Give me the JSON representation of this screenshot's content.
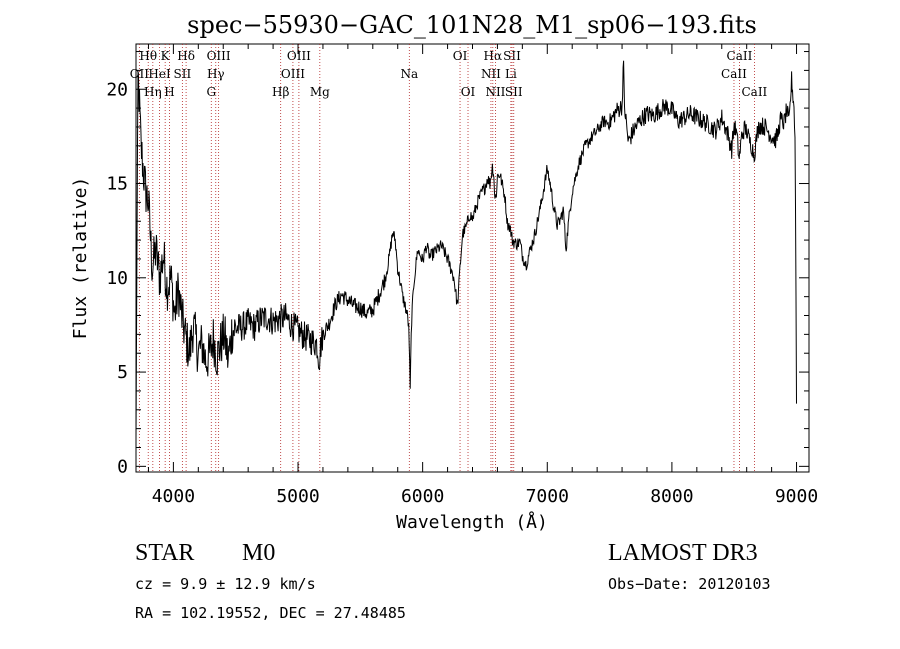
{
  "chart_data": {
    "type": "line",
    "title": "spec−55930−GAC_101N28_M1_sp06−193.fits",
    "xlabel": "Wavelength (Å)",
    "ylabel": "Flux (relative)",
    "xlim": [
      3700,
      9100
    ],
    "ylim": [
      -0.3,
      22.4
    ],
    "xticks": [
      4000,
      5000,
      6000,
      7000,
      8000,
      9000
    ],
    "yticks": [
      0,
      5,
      10,
      15,
      20
    ],
    "grid": false,
    "series": [
      {
        "name": "flux",
        "color": "#000000",
        "x": [
          3700,
          3715,
          3725,
          3740,
          3760,
          3780,
          3800,
          3830,
          3860,
          3890,
          3920,
          3950,
          3980,
          4010,
          4040,
          4070,
          4100,
          4130,
          4160,
          4200,
          4230,
          4260,
          4290,
          4320,
          4350,
          4380,
          4410,
          4440,
          4470,
          4500,
          4550,
          4600,
          4650,
          4700,
          4750,
          4800,
          4850,
          4900,
          4950,
          5000,
          5050,
          5100,
          5150,
          5170,
          5180,
          5200,
          5250,
          5300,
          5350,
          5400,
          5450,
          5500,
          5550,
          5600,
          5650,
          5700,
          5730,
          5760,
          5780,
          5800,
          5820,
          5840,
          5860,
          5880,
          5890,
          5900,
          5910,
          5930,
          5960,
          6000,
          6030,
          6060,
          6100,
          6150,
          6200,
          6250,
          6280,
          6300,
          6320,
          6350,
          6380,
          6400,
          6440,
          6480,
          6500,
          6520,
          6540,
          6560,
          6570,
          6580,
          6590,
          6600,
          6620,
          6640,
          6660,
          6680,
          6700,
          6720,
          6750,
          6780,
          6800,
          6830,
          6860,
          6900,
          6950,
          7000,
          7030,
          7050,
          7080,
          7100,
          7130,
          7150,
          7170,
          7200,
          7250,
          7300,
          7350,
          7400,
          7450,
          7500,
          7550,
          7580,
          7600,
          7610,
          7620,
          7650,
          7700,
          7750,
          7800,
          7850,
          7900,
          7950,
          8000,
          8050,
          8100,
          8150,
          8200,
          8250,
          8300,
          8350,
          8400,
          8450,
          8480,
          8500,
          8520,
          8540,
          8560,
          8580,
          8600,
          8620,
          8640,
          8660,
          8680,
          8700,
          8750,
          8800,
          8830,
          8850,
          8870,
          8900,
          8920,
          8940,
          8960,
          8980,
          8990,
          9000
        ],
        "y": [
          1.5,
          21.0,
          19.5,
          17.0,
          15.6,
          14.5,
          14.0,
          10.5,
          11.5,
          10.0,
          11.2,
          9.5,
          10.0,
          8.0,
          9.4,
          7.8,
          6.8,
          6.0,
          7.5,
          6.0,
          6.5,
          5.6,
          5.9,
          6.8,
          5.8,
          6.5,
          7.0,
          5.6,
          7.2,
          7.3,
          7.4,
          7.6,
          7.4,
          7.8,
          7.9,
          7.7,
          7.8,
          7.9,
          7.5,
          7.2,
          6.9,
          6.7,
          6.5,
          5.6,
          6.3,
          7.0,
          7.6,
          8.6,
          9.1,
          8.8,
          8.5,
          8.4,
          8.1,
          8.3,
          9.1,
          10.0,
          11.0,
          12.4,
          12.0,
          10.5,
          9.8,
          9.0,
          8.5,
          7.9,
          7.2,
          4.0,
          7.6,
          9.8,
          11.5,
          10.9,
          11.7,
          11.1,
          11.4,
          11.7,
          11.0,
          10.0,
          8.5,
          10.5,
          12.3,
          12.7,
          13.4,
          13.1,
          14.0,
          14.6,
          14.8,
          15.3,
          15.0,
          15.9,
          15.6,
          14.2,
          14.3,
          15.4,
          15.5,
          14.9,
          14.3,
          12.9,
          12.7,
          12.0,
          11.8,
          11.9,
          11.2,
          10.7,
          11.4,
          12.3,
          13.9,
          15.8,
          14.7,
          13.8,
          12.8,
          13.0,
          13.6,
          11.5,
          12.9,
          14.6,
          16.0,
          16.9,
          17.4,
          17.8,
          18.3,
          18.2,
          18.8,
          19.0,
          19.1,
          21.6,
          19.1,
          17.2,
          17.9,
          18.4,
          18.7,
          18.6,
          18.9,
          19.1,
          18.9,
          18.3,
          18.5,
          18.7,
          18.5,
          18.3,
          18.1,
          17.8,
          18.5,
          17.6,
          16.8,
          18.1,
          17.6,
          16.3,
          17.5,
          17.9,
          17.8,
          17.3,
          17.0,
          16.5,
          17.5,
          18.1,
          18.0,
          17.5,
          17.3,
          17.6,
          18.4,
          18.2,
          18.9,
          18.2,
          20.5,
          19.1,
          16.8,
          3.5
        ]
      }
    ],
    "lines": [
      {
        "label": "Hθ",
        "x": 3798,
        "row": 0
      },
      {
        "label": "OII",
        "x": 3727,
        "row": 1
      },
      {
        "label": "Hη",
        "x": 3835,
        "row": 2
      },
      {
        "label": "K",
        "x": 3934,
        "row": 0
      },
      {
        "label": "HeI",
        "x": 3889,
        "row": 1
      },
      {
        "label": "H",
        "x": 3969,
        "row": 2
      },
      {
        "label": "Hδ",
        "x": 4102,
        "row": 0
      },
      {
        "label": "SII",
        "x": 4072,
        "row": 1
      },
      {
        "label": "OIII",
        "x": 4363,
        "row": 0
      },
      {
        "label": "Hγ",
        "x": 4340,
        "row": 1
      },
      {
        "label": "G",
        "x": 4304,
        "row": 2
      },
      {
        "label": "OIII",
        "x": 5007,
        "row": 0
      },
      {
        "label": "OIII",
        "x": 4959,
        "row": 1
      },
      {
        "label": "Hβ",
        "x": 4861,
        "row": 2
      },
      {
        "label": "Mg",
        "x": 5175,
        "row": 2
      },
      {
        "label": "Na",
        "x": 5893,
        "row": 1
      },
      {
        "label": "OI",
        "x": 6300,
        "row": 0
      },
      {
        "label": "OI",
        "x": 6364,
        "row": 2
      },
      {
        "label": "Hα",
        "x": 6563,
        "row": 0
      },
      {
        "label": "NII",
        "x": 6548,
        "row": 1
      },
      {
        "label": "NII",
        "x": 6584,
        "row": 2
      },
      {
        "label": "SII",
        "x": 6717,
        "row": 0
      },
      {
        "label": "Li",
        "x": 6708,
        "row": 1
      },
      {
        "label": "SII",
        "x": 6731,
        "row": 2
      },
      {
        "label": "CaII",
        "x": 8542,
        "row": 0
      },
      {
        "label": "CaII",
        "x": 8498,
        "row": 1
      },
      {
        "label": "CaII",
        "x": 8662,
        "row": 2
      }
    ]
  },
  "info": {
    "object_class": "STAR",
    "subclass": "M0",
    "survey": "LAMOST DR3",
    "redshift_text": "cz = 9.9 ± 12.9 km/s",
    "obs_date_text": "Obs−Date: 20120103",
    "coords_text": "RA = 102.19552, DEC =  27.48485"
  }
}
